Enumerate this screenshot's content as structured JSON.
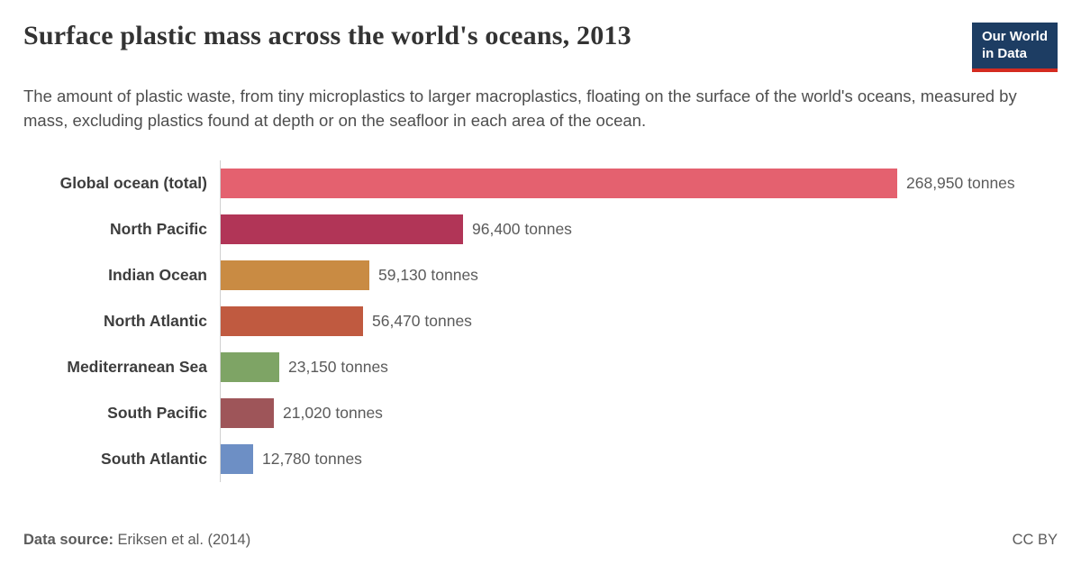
{
  "header": {
    "title": "Surface plastic mass across the world's oceans, 2013",
    "subtitle": "The amount of plastic waste, from tiny microplastics to larger macroplastics, floating on the surface of the world's oceans, measured by mass, excluding plastics found at depth or on the seafloor in each area of the ocean.",
    "logo": {
      "line1": "Our World",
      "line2": "in Data",
      "background_color": "#1d3d63",
      "accent_color": "#d42b20"
    }
  },
  "chart_data": {
    "type": "bar",
    "orientation": "horizontal",
    "title": "Surface plastic mass across the world's oceans, 2013",
    "unit": "tonnes",
    "categories": [
      "Global ocean (total)",
      "North Pacific",
      "Indian Ocean",
      "North Atlantic",
      "Mediterranean Sea",
      "South Pacific",
      "South Atlantic"
    ],
    "values": [
      268950,
      96400,
      59130,
      56470,
      23150,
      21020,
      12780
    ],
    "value_labels": [
      "268,950 tonnes",
      "96,400 tonnes",
      "59,130 tonnes",
      "56,470 tonnes",
      "23,150 tonnes",
      "21,020 tonnes",
      "12,780 tonnes"
    ],
    "colors": [
      "#e4616f",
      "#b13557",
      "#c98b43",
      "#c05a40",
      "#7ea465",
      "#9e5559",
      "#6d8fc5"
    ],
    "xlim": [
      0,
      268950
    ],
    "grid": false,
    "legend": "none",
    "axis_line_color": "#d0d0d0"
  },
  "footer": {
    "source_label": "Data source:",
    "source_value": "Eriksen et al. (2014)",
    "license": "CC BY"
  }
}
